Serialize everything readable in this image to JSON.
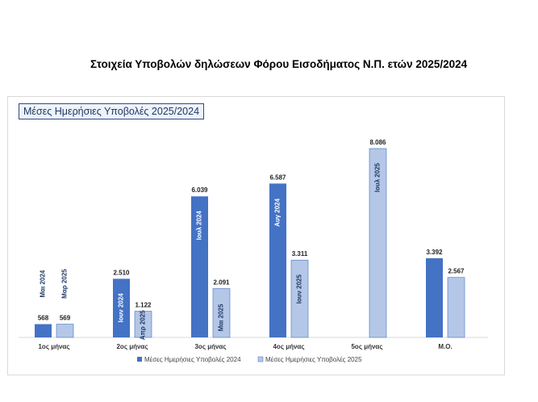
{
  "page_title": "Στοιχεία Υποβολών δηλώσεων Φόρου Εισοδήματος Ν.Π. ετών 2025/2024",
  "chart_data": {
    "type": "bar",
    "title": "Μέσες Ημερήσιες Υποβολές 2025/2024",
    "categories": [
      "1ος μήνας",
      "2ος μήνας",
      "3ος μήνας",
      "4ος μήνας",
      "5ος μήνας",
      "Μ.Ο."
    ],
    "series": [
      {
        "name": "Μέσες Ημερήσιες Υποβολές 2024",
        "color": "#4472c4",
        "values": [
          568,
          2510,
          6039,
          6587,
          null,
          3392
        ],
        "value_labels": [
          "568",
          "2.510",
          "6.039",
          "6.587",
          "",
          "3.392"
        ],
        "period_labels": [
          "Μαι 2024",
          "Ιουν 2024",
          "Ιουλ 2024",
          "Αυγ 2024",
          "",
          ""
        ]
      },
      {
        "name": "Μέσες Ημερήσιες Υποβολές 2025",
        "color": "#b4c7e7",
        "values": [
          569,
          1122,
          2091,
          3311,
          8086,
          2567
        ],
        "value_labels": [
          "569",
          "1.122",
          "2.091",
          "3.311",
          "8.086",
          "2.567"
        ],
        "period_labels": [
          "Μαρ 2025",
          "Απρ 2025",
          "Μαι 2025",
          "Ιουν 2025",
          "Ιουλ 2025",
          ""
        ]
      }
    ],
    "ylim": [
      0,
      8600
    ],
    "grid": false,
    "legend_position": "bottom"
  }
}
